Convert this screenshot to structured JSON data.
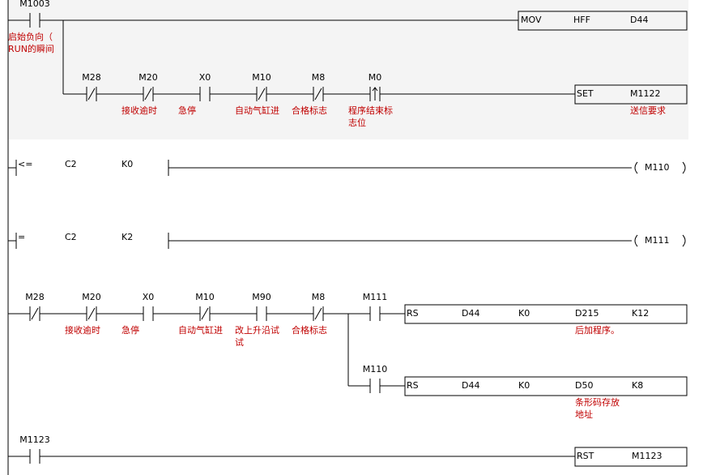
{
  "rungs": [
    {
      "contacts": [
        {
          "label": "M1003",
          "type": "no",
          "comment": [
            "启始负向（",
            "RUN的瞬间"
          ]
        }
      ],
      "box": [
        "MOV",
        "HFF",
        "D44"
      ],
      "branch": {
        "contacts": [
          {
            "label": "M28",
            "type": "nc"
          },
          {
            "label": "M20",
            "type": "nc",
            "comment": [
              "接收逾时"
            ]
          },
          {
            "label": "X0",
            "type": "no",
            "comment": [
              "急停"
            ]
          },
          {
            "label": "M10",
            "type": "nc",
            "comment": [
              "自动气缸进"
            ]
          },
          {
            "label": "M8",
            "type": "nc",
            "comment": [
              "合格标志"
            ]
          },
          {
            "label": "M0",
            "type": "rise",
            "comment": [
              "程序结束标",
              "志位"
            ]
          }
        ],
        "box": [
          "SET",
          "M1122"
        ],
        "box_comment": [
          "送信要求"
        ]
      }
    },
    {
      "compare": [
        "<=",
        "C2",
        "K0"
      ],
      "coil": "M110"
    },
    {
      "compare": [
        "=",
        "C2",
        "K2"
      ],
      "coil": "M111"
    },
    {
      "contacts": [
        {
          "label": "M28",
          "type": "nc"
        },
        {
          "label": "M20",
          "type": "nc",
          "comment": [
            "接收逾时"
          ]
        },
        {
          "label": "X0",
          "type": "no",
          "comment": [
            "急停"
          ]
        },
        {
          "label": "M10",
          "type": "nc",
          "comment": [
            "自动气缸进"
          ]
        },
        {
          "label": "M90",
          "type": "no",
          "comment": [
            "改上升沿试",
            "试"
          ]
        },
        {
          "label": "M8",
          "type": "nc",
          "comment": [
            "合格标志"
          ]
        },
        {
          "label": "M111",
          "type": "no"
        }
      ],
      "box": [
        "RS",
        "D44",
        "K0",
        "D215",
        "K12"
      ],
      "box_comment": [
        "后加程序。"
      ],
      "branch": {
        "contacts": [
          {
            "label": "M110",
            "type": "no"
          }
        ],
        "box": [
          "RS",
          "D44",
          "K0",
          "D50",
          "K8"
        ],
        "box_comment": [
          "条形码存放",
          "地址"
        ]
      }
    },
    {
      "contacts": [
        {
          "label": "M1123",
          "type": "no"
        }
      ],
      "box": [
        "RST",
        "M1123"
      ]
    }
  ]
}
